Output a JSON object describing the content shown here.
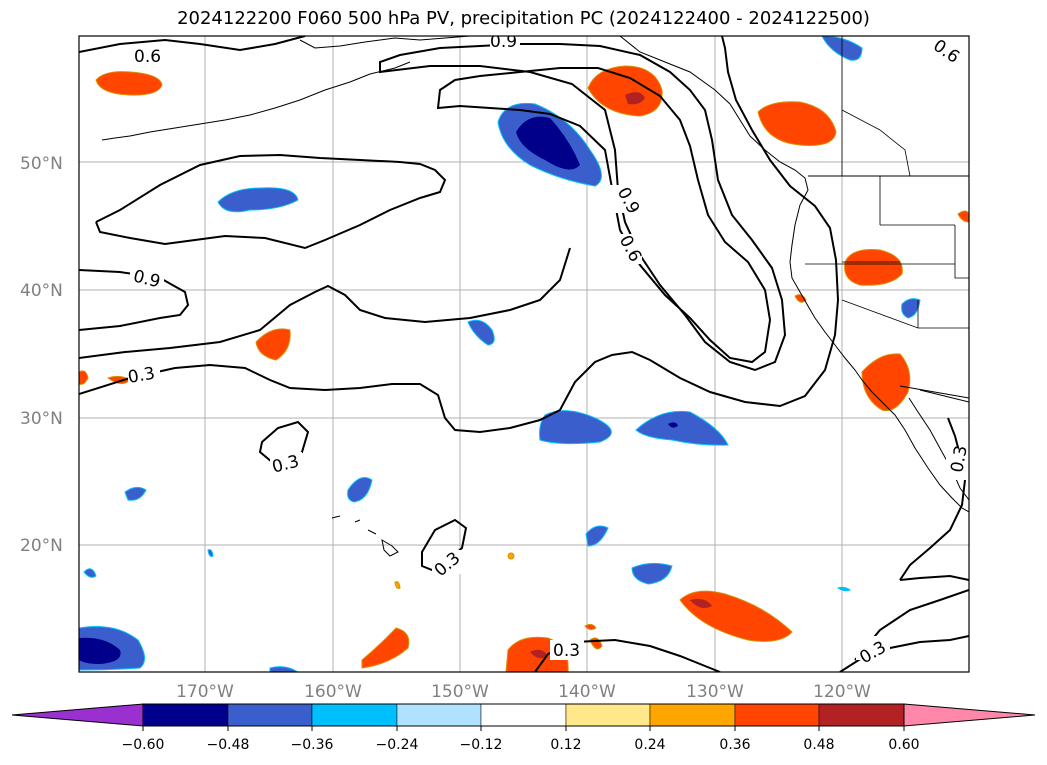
{
  "title": "2024122200 F060 500 hPa PV, precipitation PC (2024122400 - 2024122500)",
  "lat_labels": [
    "50°N",
    "40°N",
    "30°N",
    "20°N"
  ],
  "lon_labels": [
    "170°W",
    "160°W",
    "150°W",
    "140°W",
    "130°W",
    "120°W"
  ],
  "contour_labels": [
    "0.6",
    "0.9",
    "0.6",
    "0.9",
    "0.6",
    "0.9",
    "0.3",
    "0.3",
    "0.3",
    "0.3",
    "0.3",
    "0.3"
  ],
  "colorbar": {
    "ticks": [
      "−0.60",
      "−0.48",
      "−0.36",
      "−0.24",
      "−0.12",
      "0.12",
      "0.24",
      "0.36",
      "0.48",
      "0.60"
    ],
    "colors": [
      "#9b30d0",
      "#00008b",
      "#3a5fcd",
      "#00bfff",
      "#b0e2ff",
      "#ffffff",
      "#ffe78c",
      "#ffa500",
      "#ff4500",
      "#b22222",
      "#ff88aa"
    ]
  }
}
